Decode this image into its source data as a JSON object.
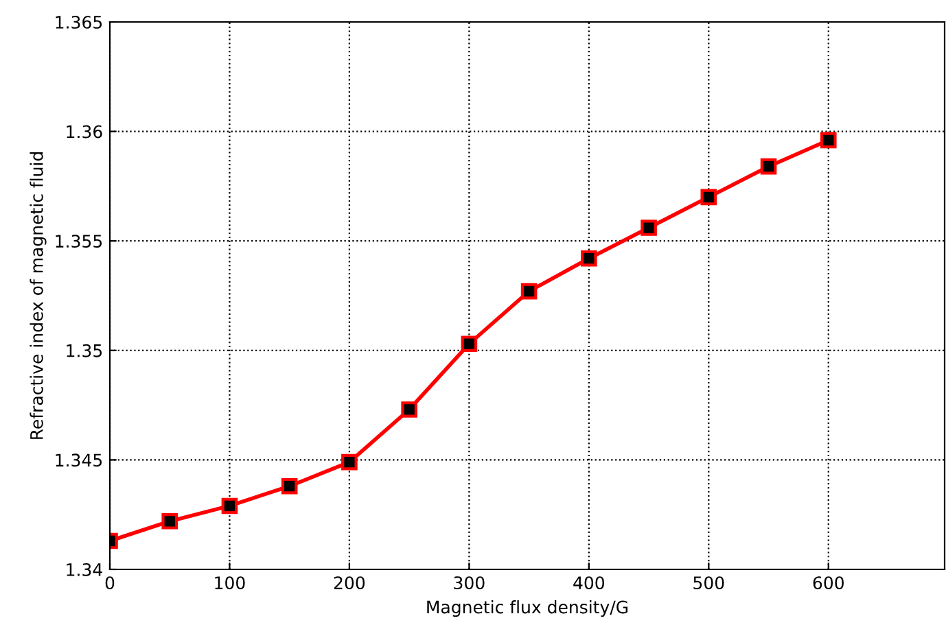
{
  "chart_data": {
    "type": "line",
    "xlabel": "Magnetic flux density/G",
    "ylabel": "Refractive index of magnetic fluid",
    "x": [
      0,
      50,
      100,
      150,
      200,
      250,
      300,
      350,
      400,
      450,
      500,
      550,
      600
    ],
    "series": [
      {
        "color": "#ff0000",
        "values": [
          1.3413,
          1.3422,
          1.3429,
          1.3438,
          1.3449,
          1.3473,
          1.3503,
          1.3527,
          1.3542,
          1.3556,
          1.357,
          1.3584,
          1.3596
        ]
      }
    ],
    "xlim": [
      0,
      697
    ],
    "ylim": [
      1.34,
      1.365
    ],
    "xticks": [
      0,
      100,
      200,
      300,
      400,
      500,
      600
    ],
    "yticks": [
      {
        "value": 1.34,
        "label": "1.34"
      },
      {
        "value": 1.345,
        "label": "1.345"
      },
      {
        "value": 1.35,
        "label": "1.35"
      },
      {
        "value": 1.355,
        "label": "1.355"
      },
      {
        "value": 1.36,
        "label": "1.36"
      },
      {
        "value": 1.365,
        "label": "1.365"
      }
    ],
    "grid": true,
    "marker": "square",
    "line_style": "solid"
  }
}
